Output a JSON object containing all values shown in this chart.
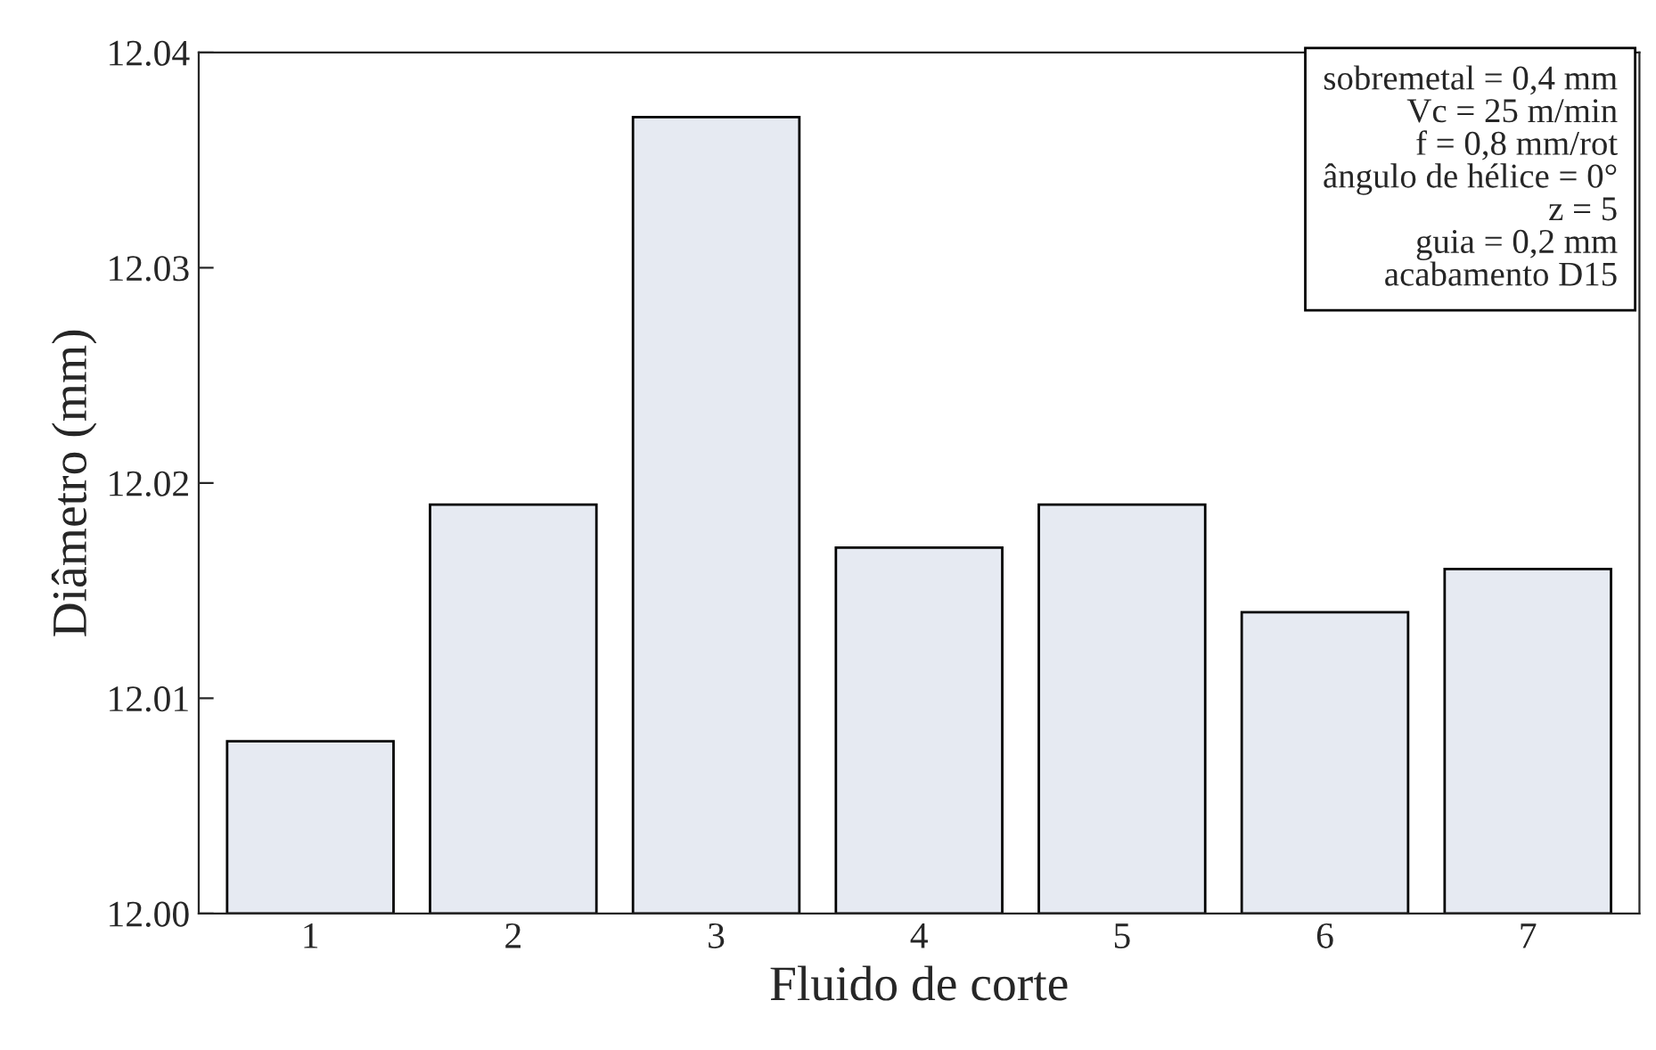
{
  "chart_data": {
    "type": "bar",
    "xlabel": "Fluido de corte",
    "ylabel": "Diâmetro (mm)",
    "categories": [
      "1",
      "2",
      "3",
      "4",
      "5",
      "6",
      "7"
    ],
    "values": [
      12.008,
      12.019,
      12.037,
      12.017,
      12.019,
      12.014,
      12.016
    ],
    "color": "#e6eaf2",
    "ylim": [
      12.0,
      12.04
    ],
    "yticks": [
      {
        "value": 12.0,
        "label": "12.00"
      },
      {
        "value": 12.01,
        "label": "12.01"
      },
      {
        "value": 12.02,
        "label": "12.02"
      },
      {
        "value": 12.03,
        "label": "12.03"
      },
      {
        "value": 12.04,
        "label": "12.04"
      }
    ],
    "grid": false,
    "annotations": [
      "sobremetal = 0,4 mm\nVc = 25 m/min\nf = 0,8 mm/rot\nângulo de hélice = 0°\nz = 5\nguia = 0,2 mm\nacabamento D15"
    ]
  }
}
